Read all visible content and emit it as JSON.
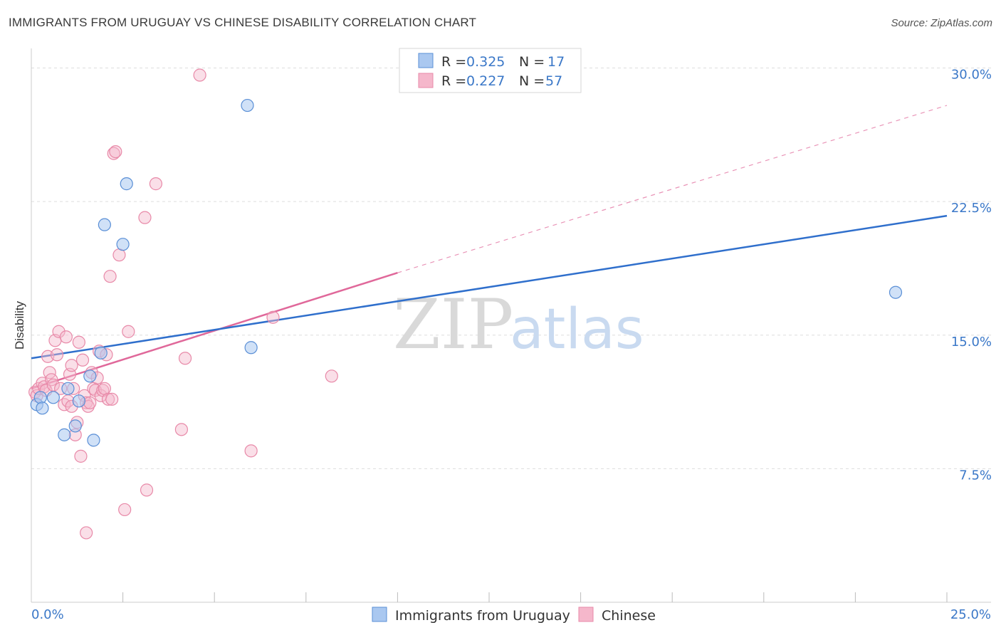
{
  "header": {
    "title": "IMMIGRANTS FROM URUGUAY VS CHINESE DISABILITY CORRELATION CHART",
    "source": "Source: ZipAtlas.com"
  },
  "watermark": {
    "zip": "ZIP",
    "atlas": "atlas"
  },
  "legend_top": [
    {
      "r_label": "R = ",
      "r_value": "0.325",
      "n_label": "N = ",
      "n_value": "17"
    },
    {
      "r_label": "R = ",
      "r_value": "0.227",
      "n_label": "N = ",
      "n_value": "57"
    }
  ],
  "legend_bottom": {
    "uruguay": "Immigrants from Uruguay",
    "chinese": "Chinese"
  },
  "colors": {
    "uruguay_fill": "#aac8f0",
    "uruguay_stroke": "#5a8fd6",
    "uruguay_line": "#2f6fcc",
    "chinese_fill": "#f5b7cb",
    "chinese_stroke": "#e889a8",
    "chinese_line": "#e0689a",
    "axis_label": "#3b78c8",
    "grid": "#dddddd"
  },
  "chart_data": {
    "type": "scatter",
    "title": "IMMIGRANTS FROM URUGUAY VS CHINESE DISABILITY CORRELATION CHART",
    "xlabel": "",
    "ylabel": "Disability",
    "xlim": [
      0,
      25
    ],
    "ylim": [
      0,
      30.7
    ],
    "x_tick_labels": [
      "0.0%",
      "25.0%"
    ],
    "y_ticks": [
      7.5,
      15.0,
      22.5,
      30.0
    ],
    "y_tick_labels": [
      "7.5%",
      "15.0%",
      "22.5%",
      "30.0%"
    ],
    "grid": true,
    "legend_position": "top-center",
    "series": [
      {
        "name": "Immigrants from Uruguay",
        "r": 0.325,
        "n": 17,
        "trend": {
          "x": [
            0,
            25
          ],
          "y": [
            13.7,
            21.7
          ],
          "style": "solid",
          "extrapolated": false
        },
        "points": [
          [
            0.15,
            11.1
          ],
          [
            0.25,
            11.5
          ],
          [
            0.3,
            10.9
          ],
          [
            0.6,
            11.5
          ],
          [
            1.0,
            12.0
          ],
          [
            0.9,
            9.4
          ],
          [
            1.2,
            9.9
          ],
          [
            1.3,
            11.3
          ],
          [
            1.6,
            12.7
          ],
          [
            1.7,
            9.1
          ],
          [
            1.9,
            14.0
          ],
          [
            2.0,
            21.2
          ],
          [
            2.5,
            20.1
          ],
          [
            2.6,
            23.5
          ],
          [
            5.9,
            27.9
          ],
          [
            6.0,
            14.3
          ],
          [
            23.6,
            17.4
          ]
        ]
      },
      {
        "name": "Chinese",
        "r": 0.227,
        "n": 57,
        "trend": {
          "x": [
            0,
            10
          ],
          "y": [
            12.0,
            18.5
          ],
          "style": "solid",
          "extrapolated_to": [
            25,
            27.9
          ]
        },
        "points": [
          [
            0.1,
            11.8
          ],
          [
            0.15,
            11.6
          ],
          [
            0.2,
            12.0
          ],
          [
            0.3,
            12.3
          ],
          [
            0.35,
            12.1
          ],
          [
            0.4,
            11.9
          ],
          [
            0.45,
            13.8
          ],
          [
            0.5,
            12.9
          ],
          [
            0.55,
            12.5
          ],
          [
            0.6,
            12.2
          ],
          [
            0.65,
            14.7
          ],
          [
            0.7,
            13.9
          ],
          [
            0.75,
            15.2
          ],
          [
            0.8,
            12.0
          ],
          [
            0.9,
            11.1
          ],
          [
            0.95,
            14.9
          ],
          [
            1.0,
            11.3
          ],
          [
            1.05,
            12.8
          ],
          [
            1.1,
            13.3
          ],
          [
            1.15,
            12.0
          ],
          [
            1.2,
            9.4
          ],
          [
            1.25,
            10.1
          ],
          [
            1.3,
            14.6
          ],
          [
            1.35,
            8.2
          ],
          [
            1.4,
            13.6
          ],
          [
            1.45,
            11.6
          ],
          [
            1.5,
            11.2
          ],
          [
            1.5,
            3.9
          ],
          [
            1.55,
            11.0
          ],
          [
            1.6,
            11.2
          ],
          [
            1.65,
            12.9
          ],
          [
            1.7,
            12.0
          ],
          [
            1.75,
            11.9
          ],
          [
            1.8,
            12.6
          ],
          [
            1.85,
            14.1
          ],
          [
            1.9,
            11.6
          ],
          [
            1.95,
            11.9
          ],
          [
            2.0,
            12.0
          ],
          [
            2.05,
            13.9
          ],
          [
            2.1,
            11.4
          ],
          [
            2.15,
            18.3
          ],
          [
            2.2,
            11.4
          ],
          [
            2.25,
            25.2
          ],
          [
            2.3,
            25.3
          ],
          [
            2.4,
            19.5
          ],
          [
            2.55,
            5.2
          ],
          [
            2.65,
            15.2
          ],
          [
            3.1,
            21.6
          ],
          [
            3.15,
            6.3
          ],
          [
            3.4,
            23.5
          ],
          [
            4.1,
            9.7
          ],
          [
            4.2,
            13.7
          ],
          [
            4.6,
            29.6
          ],
          [
            6.0,
            8.5
          ],
          [
            6.6,
            16.0
          ],
          [
            8.2,
            12.7
          ],
          [
            1.1,
            11.0
          ]
        ]
      }
    ]
  }
}
